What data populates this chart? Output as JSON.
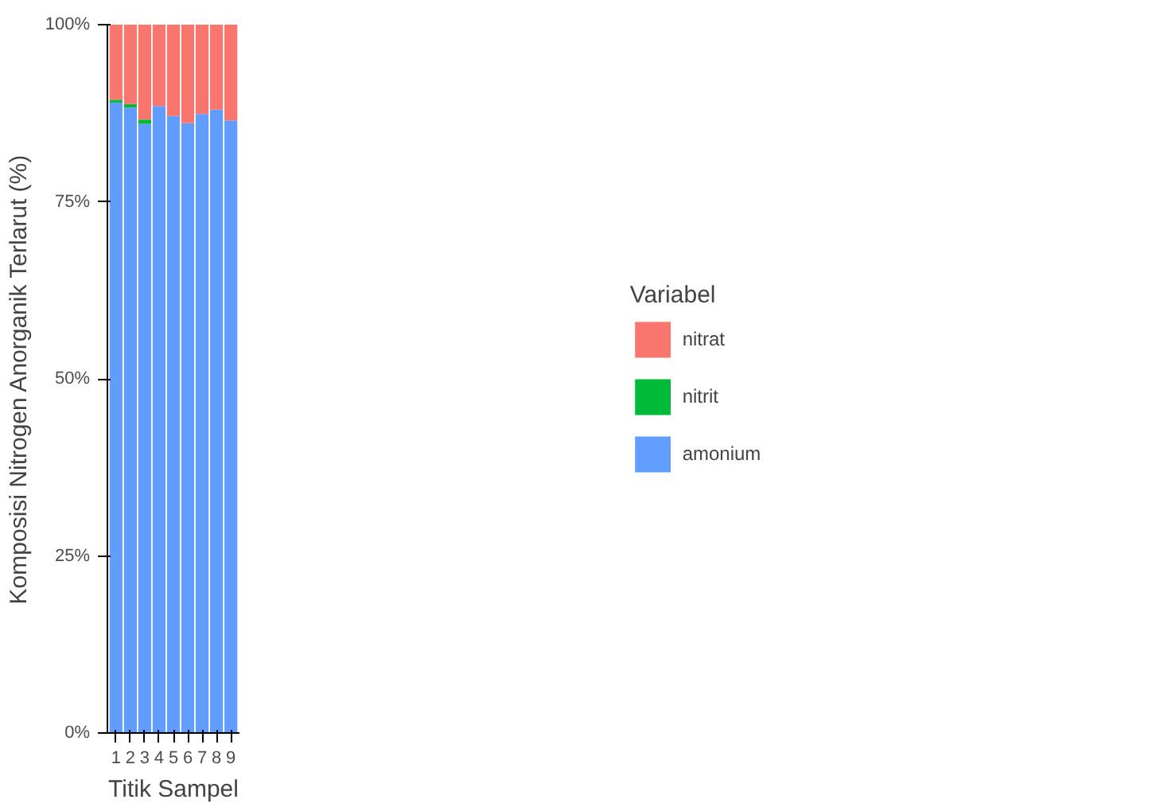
{
  "chart_data": {
    "type": "bar",
    "stacked": true,
    "xlabel": "Titik Sampel",
    "ylabel": "Komposisi Nitrogen Anorganik Terlarut (%)",
    "legend_title": "Variabel",
    "legend": "right",
    "grid": false,
    "categories": [
      "1",
      "2",
      "3",
      "4",
      "5",
      "6",
      "7",
      "8",
      "9"
    ],
    "ylim": [
      0,
      100
    ],
    "yticks": [
      {
        "value": 0,
        "label": "0%"
      },
      {
        "value": 25,
        "label": "25%"
      },
      {
        "value": 50,
        "label": "50%"
      },
      {
        "value": 75,
        "label": "75%"
      },
      {
        "value": 100,
        "label": "100%"
      }
    ],
    "series": [
      {
        "name": "amonium",
        "color": "#619cff",
        "values": [
          89.0,
          88.3,
          86.0,
          88.5,
          87.1,
          86.1,
          87.4,
          88.0,
          86.5
        ]
      },
      {
        "name": "nitrit",
        "color": "#00ba38",
        "values": [
          0.4,
          0.5,
          0.6,
          0,
          0,
          0,
          0,
          0,
          0
        ]
      },
      {
        "name": "nitrat",
        "color": "#f8766d",
        "values": [
          10.6,
          11.2,
          13.4,
          11.5,
          12.9,
          13.9,
          12.6,
          12.0,
          13.5
        ]
      }
    ]
  }
}
